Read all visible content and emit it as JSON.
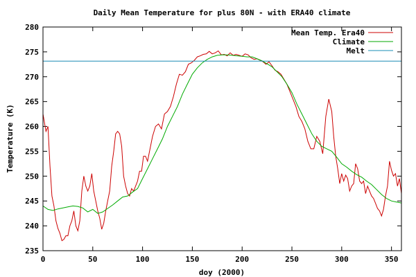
{
  "chart_data": {
    "type": "line",
    "title": "Daily Mean Temperature for plus 80N - with ERA40 climate",
    "xlabel": "doy (2000)",
    "ylabel": "Temperature (K)",
    "xlim": [
      0,
      360
    ],
    "ylim": [
      235,
      280
    ],
    "x_ticks": [
      0,
      50,
      100,
      150,
      200,
      250,
      300,
      350
    ],
    "y_ticks": [
      235,
      240,
      245,
      250,
      255,
      260,
      265,
      270,
      275,
      280
    ],
    "grid": false,
    "legend_position": "top-right",
    "series": [
      {
        "name": "Mean Temp. Era40",
        "color": "#cc0000",
        "x": [
          0,
          3,
          5,
          7,
          9,
          11,
          13,
          15,
          17,
          19,
          21,
          23,
          25,
          27,
          29,
          31,
          33,
          35,
          37,
          39,
          41,
          43,
          45,
          47,
          49,
          51,
          53,
          55,
          57,
          59,
          61,
          63,
          65,
          67,
          69,
          71,
          73,
          75,
          77,
          79,
          81,
          83,
          85,
          87,
          89,
          91,
          93,
          95,
          97,
          99,
          101,
          103,
          105,
          107,
          110,
          113,
          116,
          119,
          122,
          125,
          128,
          131,
          134,
          137,
          140,
          143,
          146,
          149,
          152,
          155,
          158,
          161,
          164,
          167,
          170,
          173,
          176,
          179,
          182,
          185,
          188,
          191,
          194,
          197,
          200,
          203,
          206,
          209,
          212,
          215,
          218,
          221,
          224,
          227,
          230,
          233,
          236,
          239,
          242,
          245,
          248,
          251,
          254,
          257,
          260,
          263,
          266,
          269,
          272,
          275,
          278,
          281,
          284,
          287,
          290,
          292,
          294,
          296,
          298,
          300,
          302,
          304,
          306,
          308,
          310,
          312,
          314,
          316,
          318,
          320,
          322,
          324,
          326,
          328,
          330,
          332,
          334,
          336,
          338,
          340,
          342,
          344,
          346,
          348,
          350,
          352,
          354,
          356,
          358,
          360
        ],
        "y": [
          262.5,
          259,
          260,
          252,
          246,
          244,
          241,
          239.5,
          238.5,
          237,
          237.3,
          238,
          238,
          240,
          241,
          243,
          240,
          239,
          241,
          247,
          250,
          248,
          247,
          248,
          250.5,
          247,
          245,
          243,
          241.5,
          239.3,
          240.5,
          243,
          245,
          247,
          252,
          255,
          258.5,
          259,
          258.5,
          256,
          250,
          248,
          246.5,
          246,
          247.5,
          247,
          248,
          249,
          251,
          251,
          254,
          254,
          253,
          255,
          258,
          260,
          260.5,
          259.5,
          262.5,
          263,
          264,
          266,
          268.5,
          270.5,
          270.3,
          271,
          272.5,
          272.8,
          273.3,
          274,
          274.2,
          274.5,
          274.6,
          275.1,
          274.6,
          274.8,
          275.2,
          274.4,
          274.5,
          274.2,
          274.8,
          274.3,
          274.5,
          274.3,
          274.1,
          274.6,
          274.4,
          273.8,
          273.5,
          273.6,
          273.3,
          273,
          272.5,
          273,
          272.2,
          271.3,
          271,
          270.5,
          269.5,
          268.5,
          267,
          265.5,
          264,
          262,
          261,
          259.5,
          257,
          255.5,
          255.5,
          258,
          257,
          254.5,
          262,
          265.5,
          263,
          258,
          254,
          251.5,
          248.5,
          250.5,
          249,
          250.2,
          249.5,
          247,
          248,
          248.5,
          252.5,
          251.5,
          249,
          248.5,
          249,
          246.5,
          248,
          247,
          246,
          245.5,
          244.5,
          243.5,
          243,
          242,
          243.3,
          246,
          248,
          253,
          251.2,
          250,
          250.5,
          248,
          249.5,
          246.5
        ]
      },
      {
        "name": "Climate",
        "color": "#00aa00",
        "x": [
          0,
          5,
          10,
          15,
          20,
          25,
          30,
          35,
          40,
          45,
          50,
          55,
          60,
          65,
          70,
          75,
          80,
          85,
          90,
          95,
          100,
          105,
          110,
          115,
          120,
          125,
          130,
          135,
          140,
          145,
          150,
          155,
          160,
          165,
          170,
          175,
          180,
          185,
          190,
          195,
          200,
          205,
          210,
          215,
          220,
          225,
          230,
          235,
          240,
          245,
          250,
          255,
          260,
          265,
          270,
          275,
          280,
          285,
          290,
          295,
          300,
          305,
          310,
          315,
          320,
          325,
          330,
          335,
          340,
          345,
          350,
          355,
          360
        ],
        "y": [
          244,
          243.3,
          243.1,
          243.4,
          243.6,
          243.8,
          244,
          243.9,
          243.6,
          242.8,
          243.3,
          242.5,
          242.8,
          243.5,
          244.2,
          245,
          245.8,
          246,
          246.8,
          247.5,
          249.5,
          251.5,
          253.5,
          255.5,
          257.5,
          260,
          262,
          264,
          266.5,
          268.5,
          270.5,
          271.8,
          272.8,
          273.5,
          274,
          274.3,
          274.4,
          274.4,
          274.3,
          274.2,
          274.1,
          274,
          274,
          273.6,
          273.2,
          272.6,
          272,
          271,
          270,
          268.5,
          266.8,
          264.5,
          262.5,
          260.5,
          258.5,
          257,
          256,
          255.5,
          255,
          253.8,
          252.5,
          251.8,
          251,
          250.3,
          249.8,
          249,
          248.3,
          247.3,
          246.3,
          245.5,
          245,
          244.8,
          244.6
        ]
      },
      {
        "name": "Melt",
        "color": "#1a8cb4",
        "x": [
          0,
          360
        ],
        "y": [
          273.15,
          273.15
        ]
      }
    ]
  }
}
